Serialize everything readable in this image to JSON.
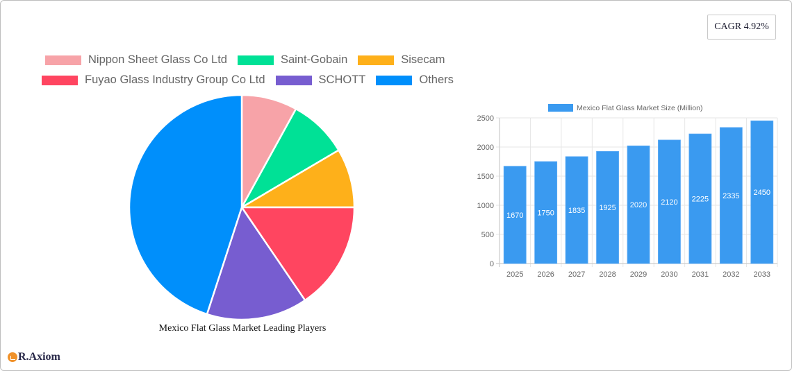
{
  "cagr_badge": {
    "label": "CAGR 4.92%"
  },
  "pie_chart": {
    "title": "Mexico Flat Glass Market Leading Players"
  },
  "bar_chart": {
    "legend_label": "Mexico Flat Glass Market Size (Million)"
  },
  "logo": {
    "text": "R.Axiom"
  },
  "colors": {
    "bar": "#3a9af0",
    "grid": "#e6e6e6"
  },
  "chart_data": [
    {
      "type": "pie",
      "title": "Mexico Flat Glass Market Leading Players",
      "legend_position": "top",
      "categories": [
        "Nippon Sheet Glass Co  Ltd",
        "Saint-Gobain",
        "Sisecam",
        "Fuyao Glass Industry Group Co  Ltd",
        "SCHOTT",
        "Others"
      ],
      "values": [
        8,
        8.5,
        8.5,
        15.5,
        14.5,
        45
      ],
      "colors": [
        "#f7a3a8",
        "#00e196",
        "#feb01a",
        "#ff4560",
        "#775dd0",
        "#008ffb"
      ]
    },
    {
      "type": "bar",
      "title": "",
      "series": [
        {
          "name": "Mexico Flat Glass Market Size (Million)",
          "values": [
            1670,
            1750,
            1835,
            1925,
            2020,
            2120,
            2225,
            2335,
            2450
          ]
        }
      ],
      "categories": [
        "2025",
        "2026",
        "2027",
        "2028",
        "2029",
        "2030",
        "2031",
        "2032",
        "2033"
      ],
      "xlabel": "",
      "ylabel": "",
      "ylim": [
        0,
        2500
      ],
      "yticks": [
        0,
        500,
        1000,
        1500,
        2000,
        2500
      ],
      "grid": true,
      "legend_position": "top",
      "data_labels": true
    }
  ]
}
